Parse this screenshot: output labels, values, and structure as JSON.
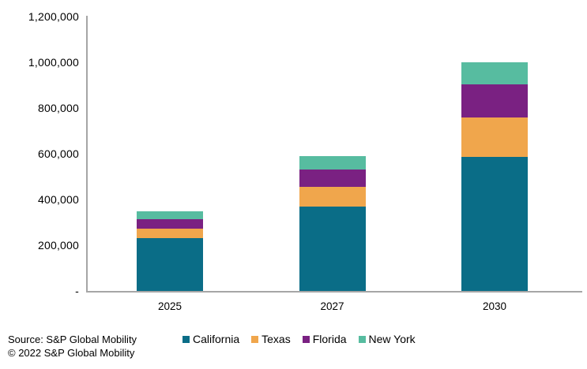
{
  "chart_data": {
    "type": "bar",
    "stacked": true,
    "title": "",
    "categories": [
      "2025",
      "2027",
      "2030"
    ],
    "series": [
      {
        "name": "California",
        "color": "#0A6D87",
        "values": [
          230000,
          368000,
          585000
        ]
      },
      {
        "name": "Texas",
        "color": "#F0A64C",
        "values": [
          42000,
          87000,
          174000
        ]
      },
      {
        "name": "Florida",
        "color": "#7A2182",
        "values": [
          42000,
          77000,
          143000
        ]
      },
      {
        "name": "New York",
        "color": "#57BCA0",
        "values": [
          35000,
          57000,
          97000
        ]
      }
    ],
    "y_axis": {
      "range": [
        0,
        1200000
      ],
      "ticks": [
        {
          "label": "1,200,000",
          "value": 1200000
        },
        {
          "label": "1,000,000",
          "value": 1000000
        },
        {
          "label": "800,000",
          "value": 800000
        },
        {
          "label": "600,000",
          "value": 600000
        },
        {
          "label": "400,000",
          "value": 400000
        },
        {
          "label": "200,000",
          "value": 200000
        },
        {
          "label": "-",
          "value": 0
        }
      ]
    },
    "grid": false,
    "legend_position": "bottom"
  },
  "footer": {
    "source": "Source: S&P Global Mobility",
    "copyright": "© 2022 S&P Global Mobility"
  },
  "colors": {
    "axis": "#A6A6A6",
    "text": "#000000",
    "background": "#FFFFFF"
  }
}
